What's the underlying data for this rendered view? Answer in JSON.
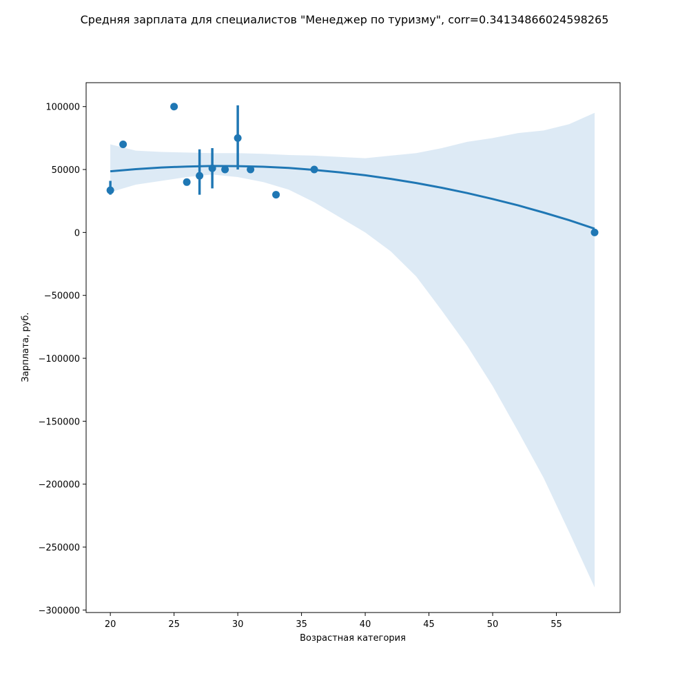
{
  "chart_data": {
    "type": "scatter",
    "title": "Средняя зарплата для специалистов \"Менеджер по туризму\", corr=0.34134866024598265",
    "xlabel": "Возрастная категория",
    "ylabel": "Зарплата, руб.",
    "xlim": [
      18.1,
      60
    ],
    "ylim": [
      -302000,
      119000
    ],
    "x_ticks": [
      20,
      25,
      30,
      35,
      40,
      45,
      50,
      55
    ],
    "y_ticks": [
      100000,
      50000,
      0,
      -50000,
      -100000,
      -150000,
      -200000,
      -250000,
      -300000
    ],
    "x_tick_labels": [
      "20",
      "25",
      "30",
      "35",
      "40",
      "45",
      "50",
      "55"
    ],
    "y_tick_labels": [
      "100000",
      "50000",
      "0",
      "−50000",
      "−100000",
      "−150000",
      "−200000",
      "−250000",
      "−300000"
    ],
    "grid": false,
    "colors": {
      "series": "#1f77b4",
      "band": "#c6dcee",
      "axes": "#000000"
    },
    "points": [
      {
        "x": 20,
        "y": 33500,
        "err_low": 30000,
        "err_high": 41000
      },
      {
        "x": 21,
        "y": 70000
      },
      {
        "x": 25,
        "y": 100000
      },
      {
        "x": 26,
        "y": 40000
      },
      {
        "x": 27,
        "y": 45000,
        "err_low": 30000,
        "err_high": 66000
      },
      {
        "x": 28,
        "y": 51000,
        "err_low": 35000,
        "err_high": 67000
      },
      {
        "x": 29,
        "y": 50000
      },
      {
        "x": 30,
        "y": 75000,
        "err_low": 50000,
        "err_high": 101000
      },
      {
        "x": 31,
        "y": 50000
      },
      {
        "x": 33,
        "y": 30000
      },
      {
        "x": 36,
        "y": 50000
      },
      {
        "x": 58,
        "y": 0
      }
    ],
    "regression": {
      "order": 2,
      "x": [
        20,
        22,
        24,
        26,
        28,
        30,
        32,
        34,
        36,
        38,
        40,
        42,
        44,
        46,
        48,
        50,
        52,
        54,
        56,
        58
      ],
      "y": [
        48600,
        50300,
        51600,
        52400,
        52800,
        52700,
        52200,
        51200,
        49700,
        47800,
        45400,
        42600,
        39300,
        35500,
        31300,
        26600,
        21500,
        15800,
        9700,
        3000
      ],
      "ci_upper": [
        70000,
        65000,
        64000,
        63500,
        63000,
        63000,
        62500,
        61500,
        61000,
        60000,
        59000,
        61000,
        63000,
        67000,
        72000,
        75000,
        79000,
        81000,
        86000,
        95000
      ],
      "ci_lower": [
        32000,
        38000,
        41000,
        44000,
        46000,
        44000,
        40000,
        34000,
        24000,
        12000,
        0,
        -15000,
        -35000,
        -62000,
        -90000,
        -122000,
        -158000,
        -195000,
        -238000,
        -282000
      ]
    }
  }
}
